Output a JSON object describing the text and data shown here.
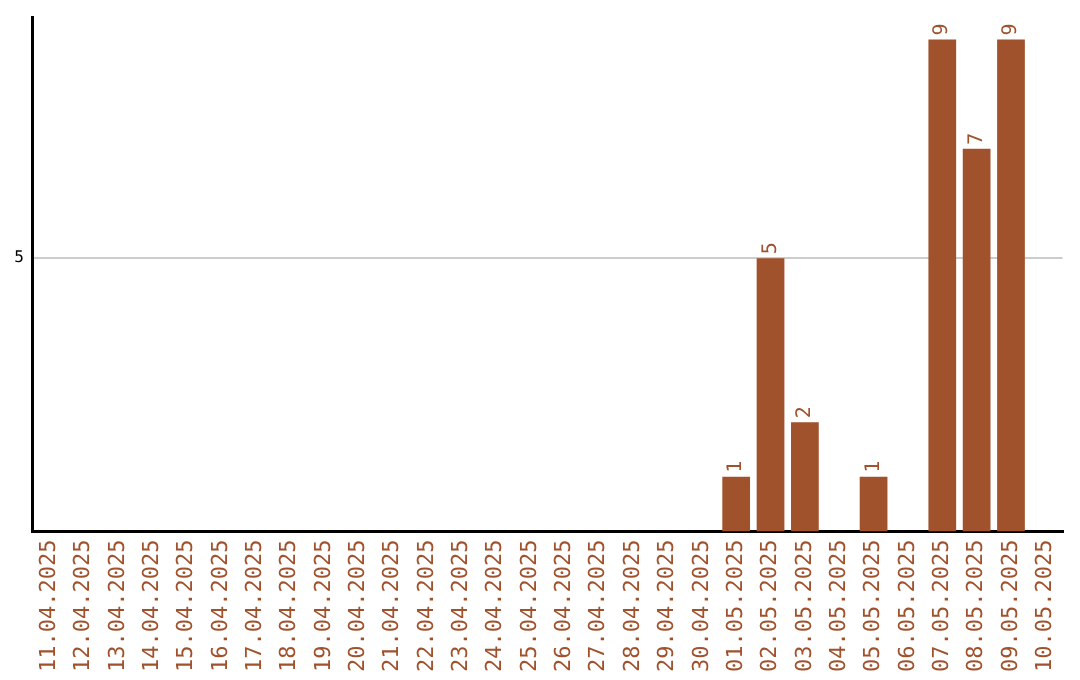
{
  "chart_data": {
    "type": "bar",
    "categories": [
      "11.04.2025",
      "12.04.2025",
      "13.04.2025",
      "14.04.2025",
      "15.04.2025",
      "16.04.2025",
      "17.04.2025",
      "18.04.2025",
      "19.04.2025",
      "20.04.2025",
      "21.04.2025",
      "22.04.2025",
      "23.04.2025",
      "24.04.2025",
      "25.04.2025",
      "26.04.2025",
      "27.04.2025",
      "28.04.2025",
      "29.04.2025",
      "30.04.2025",
      "01.05.2025",
      "02.05.2025",
      "03.05.2025",
      "04.05.2025",
      "05.05.2025",
      "06.05.2025",
      "07.05.2025",
      "08.05.2025",
      "09.05.2025",
      "10.05.2025"
    ],
    "values": [
      null,
      null,
      null,
      null,
      null,
      null,
      null,
      null,
      null,
      null,
      null,
      null,
      null,
      null,
      null,
      null,
      null,
      null,
      null,
      null,
      1,
      5,
      2,
      null,
      1,
      null,
      9,
      7,
      9,
      null
    ],
    "data_labels": true,
    "color": "#a0522d",
    "ylim": [
      0,
      9.4
    ],
    "yticks": [
      5
    ],
    "grid": "y",
    "legend": false
  }
}
